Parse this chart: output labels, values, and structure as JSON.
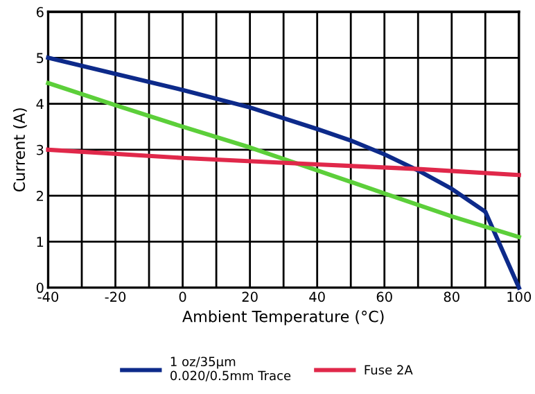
{
  "chart_data": {
    "type": "line",
    "xlabel": "Ambient Temperature (°C)",
    "ylabel": "Current (A)",
    "xlim": [
      -40,
      100
    ],
    "ylim": [
      0,
      6
    ],
    "xticks": [
      -40,
      {
        "value": -30,
        "label": null
      },
      -20,
      {
        "value": -10,
        "label": null
      },
      0,
      {
        "value": 10,
        "label": null
      },
      20,
      {
        "value": 30,
        "label": null
      },
      40,
      {
        "value": 50,
        "label": null
      },
      60,
      {
        "value": 70,
        "label": null
      },
      80,
      {
        "value": 90,
        "label": null
      },
      100
    ],
    "yticks": [
      0,
      1,
      2,
      3,
      4,
      5,
      6
    ],
    "grid": true,
    "legend": "bottom",
    "marker": "none",
    "line_style": "solid",
    "series": [
      {
        "name": "1 oz/35µm\n0.020/0.5mm Trace",
        "color": "#0d2a8a",
        "x": [
          -40,
          -20,
          0,
          20,
          40,
          50,
          60,
          70,
          80,
          90,
          100
        ],
        "values": [
          5,
          4.65,
          4.3,
          3.92,
          3.45,
          3.2,
          2.9,
          2.55,
          2.15,
          1.65,
          0
        ]
      },
      {
        "color": "#5ccf3a",
        "x": [
          -40,
          -20,
          0,
          20,
          40,
          60,
          80,
          100
        ],
        "values": [
          4.45,
          3.97,
          3.5,
          3.05,
          2.55,
          2.05,
          1.55,
          1.1
        ]
      },
      {
        "name": "Fuse 2A",
        "color": "#e0284a",
        "x": [
          -40,
          0,
          40,
          70,
          100
        ],
        "values": [
          3,
          2.82,
          2.68,
          2.58,
          2.45
        ]
      }
    ]
  }
}
